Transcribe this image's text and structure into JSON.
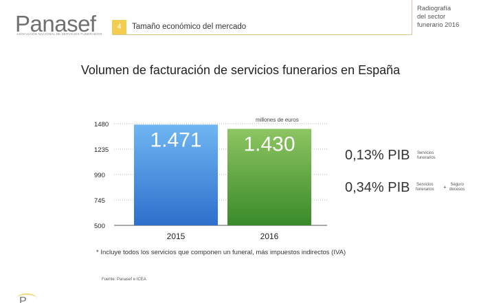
{
  "logo": {
    "name": "Panasef",
    "subtitle": "ASOCIACIÓN NACIONAL DE SERVICIOS FUNERARIOS"
  },
  "section": {
    "number": "4",
    "title": "Tamaño económico del mercado"
  },
  "side_label": [
    "Radiografía",
    "del sector",
    "funerario 2016"
  ],
  "main_title": "Volumen de facturación de servicios funerarios en España",
  "chart_data": {
    "type": "bar",
    "categories": [
      "2015",
      "2016"
    ],
    "values": [
      1471,
      1430
    ],
    "value_labels": [
      "1.471",
      "1.430"
    ],
    "unit_label": "millones de euros",
    "ylim": [
      500,
      1480
    ],
    "yticks": [
      500,
      745,
      990,
      1235,
      1480
    ],
    "grid": true,
    "colors": {
      "2015": [
        "#6fb6f2",
        "#2e6fcc"
      ],
      "2016": [
        "#8dc561",
        "#3a8a2a"
      ]
    }
  },
  "pib": [
    {
      "value": "0,13% PIB",
      "note_lines": [
        "Servicios",
        "funerarios"
      ]
    },
    {
      "value": "0,34% PIB",
      "note_lines": [
        "Servicios",
        "funerarios"
      ],
      "plus": "+",
      "note2_lines": [
        "Seguro",
        "decesos"
      ]
    }
  ],
  "footnote": "* Incluye todos los servicios que componen un funeral, más impuestos indirectos (IVA)",
  "source": "Fuente: Panasef e ICEA",
  "logo_small": "P"
}
